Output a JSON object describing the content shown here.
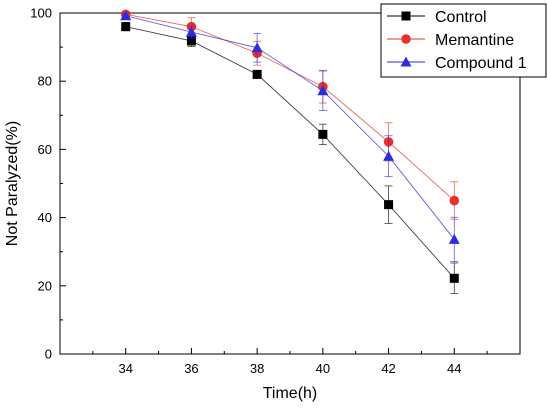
{
  "chart_data": {
    "type": "line",
    "title": "",
    "xlabel": "Time(h)",
    "ylabel": "Not Paralyzed(%)",
    "x": [
      34,
      36,
      38,
      40,
      42,
      44
    ],
    "xlim": [
      32,
      46
    ],
    "ylim": [
      0,
      100
    ],
    "xticks": [
      34,
      36,
      38,
      40,
      42,
      44
    ],
    "yticks": [
      0,
      20,
      40,
      60,
      80,
      100
    ],
    "grid": false,
    "legend_position": "top-right",
    "series": [
      {
        "name": "Control",
        "color": "#000000",
        "marker": "square",
        "values": [
          96,
          91.8,
          82,
          64.4,
          43.8,
          22.2
        ],
        "errors": [
          1.2,
          1.6,
          1.0,
          3.0,
          5.5,
          4.5
        ]
      },
      {
        "name": "Memantine",
        "color": "#e8302a",
        "marker": "circle",
        "values": [
          99.6,
          96,
          88.2,
          78.4,
          62.2,
          45
        ],
        "errors": [
          0.8,
          2.6,
          3.5,
          4.8,
          5.6,
          5.5
        ]
      },
      {
        "name": "Compound 1",
        "color": "#2d2de0",
        "marker": "triangle",
        "values": [
          99.2,
          94.4,
          89.8,
          77.2,
          58,
          33.6
        ],
        "errors": [
          0.8,
          1.8,
          4.2,
          5.8,
          6.0,
          6.5
        ]
      }
    ]
  }
}
